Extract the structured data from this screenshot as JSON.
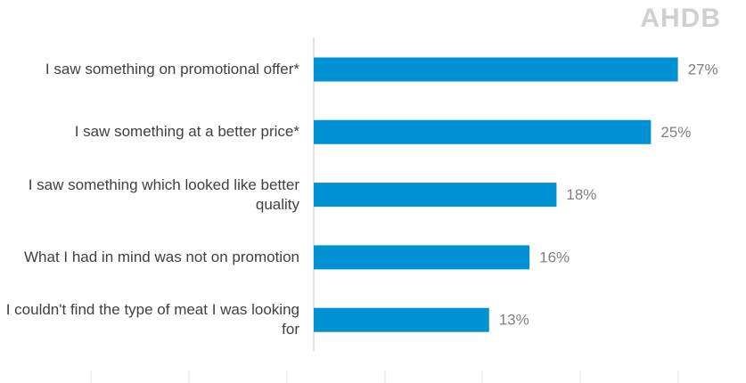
{
  "logo": "AHDB",
  "chart_data": {
    "type": "hbar",
    "categories": [
      "I saw something on promotional offer*",
      "I saw something at a better price*",
      "I saw something which looked like better quality",
      "What I had in mind was not on promotion",
      "I couldn't find the type of meat I was looking for"
    ],
    "values": [
      27,
      25,
      18,
      16,
      13
    ],
    "value_labels": [
      "27%",
      "25%",
      "18%",
      "16%",
      "13%"
    ],
    "color": "#0090d4",
    "xlim": [
      0,
      30
    ]
  }
}
